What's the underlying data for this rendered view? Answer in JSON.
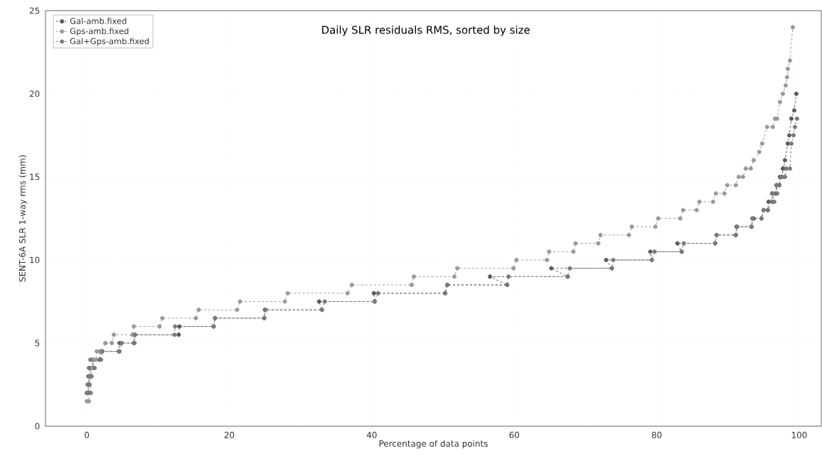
{
  "chart_data": {
    "type": "line",
    "title": "Daily SLR residuals RMS, sorted by size",
    "xlabel": "Percentage of data points",
    "ylabel": "SENT-6A SLR 1-way rms (mm)",
    "xlim": [
      -5.8,
      103.1
    ],
    "ylim": [
      0,
      25
    ],
    "xticks": [
      0,
      20,
      40,
      60,
      80,
      100
    ],
    "yticks": [
      0,
      5,
      10,
      15,
      20,
      25
    ],
    "grid": true,
    "legend": "top left",
    "marker": "circle",
    "line_style": "dashed",
    "series": [
      {
        "name": "Gal-amb.fixed",
        "color": "#5a5a5a",
        "x": [
          0,
          0.2,
          0.2,
          0.3,
          0.3,
          0.5,
          0.5,
          0.9,
          0.9,
          1.8,
          1.9,
          4.5,
          4.6,
          6.6,
          6.7,
          12.9,
          13.0,
          17.8,
          18.0,
          24.9,
          25.0,
          33.0,
          32.6,
          40.4,
          40.3,
          50.3,
          50.6,
          59.0,
          56.6,
          67.5,
          65.2,
          73.7,
          72.9,
          79.3,
          79.1,
          83.5,
          82.9,
          88.2,
          88.4,
          91.1,
          91.2,
          93.3,
          93.6,
          94.7,
          95.0,
          95.6,
          95.7,
          96.2,
          96.2,
          96.7,
          96.8,
          97.2,
          97.3,
          97.6,
          97.7,
          97.8,
          98.0,
          98.4,
          98.6,
          98.9,
          99.3,
          99.6
        ],
        "values": [
          2,
          2,
          2.5,
          2.5,
          3,
          3,
          3.5,
          3.5,
          4,
          4,
          4.5,
          4.5,
          5,
          5,
          5.5,
          5.5,
          6,
          6,
          6.5,
          6.5,
          7,
          7,
          7.5,
          7.5,
          8,
          8,
          8.5,
          8.5,
          9,
          9,
          9.5,
          9.5,
          10,
          10,
          10.5,
          10.5,
          11,
          11,
          11.5,
          11.5,
          12,
          12,
          12.5,
          12.5,
          13,
          13,
          13.5,
          13.5,
          14,
          14,
          14.5,
          14.5,
          15,
          15,
          15.5,
          15.5,
          16,
          17,
          17.5,
          18.5,
          19,
          20
        ]
      },
      {
        "name": "Gps-amb.fixed",
        "color": "#9a9a9a",
        "x": [
          0,
          0.3,
          0.3,
          0.6,
          0.4,
          0.7,
          0.6,
          0.9,
          0.8,
          1.3,
          1.4,
          2.0,
          2.6,
          3.5,
          3.8,
          6.4,
          6.6,
          10.2,
          10.6,
          15.3,
          15.7,
          21.1,
          21.5,
          27.8,
          28.2,
          36.6,
          37.2,
          45.6,
          45.9,
          51.6,
          52.0,
          59.9,
          60.3,
          64.6,
          64.9,
          68.3,
          68.6,
          71.8,
          72.1,
          76.1,
          76.5,
          79.8,
          80.2,
          83.3,
          83.7,
          85.6,
          86.0,
          87.9,
          88.3,
          89.5,
          89.9,
          91.1,
          91.5,
          92.1,
          92.5,
          93.2,
          93.6,
          94.4,
          94.8,
          95.5,
          96.3,
          96.6,
          96.9,
          97.3,
          97.7,
          98.1,
          98.3,
          98.4,
          98.7,
          99.1
        ],
        "values": [
          1.5,
          1.5,
          2,
          2,
          3,
          3,
          3.5,
          3.5,
          4,
          4,
          4.5,
          4.5,
          5,
          5,
          5.5,
          5.5,
          6,
          6,
          6.5,
          6.5,
          7,
          7,
          7.5,
          7.5,
          8,
          8,
          8.5,
          8.5,
          9,
          9,
          9.5,
          9.5,
          10,
          10,
          10.5,
          10.5,
          11,
          11,
          11.5,
          11.5,
          12,
          12,
          12.5,
          12.5,
          13,
          13,
          13.5,
          13.5,
          14,
          14,
          14.5,
          14.5,
          15,
          15,
          15.5,
          15.5,
          16,
          16.5,
          17,
          18,
          18,
          18.5,
          18.5,
          19.5,
          20,
          20.5,
          21,
          21.5,
          22,
          24
        ]
      },
      {
        "name": "Gal+Gps-amb.fixed",
        "color": "#7a7a7a",
        "x": [
          0,
          0.4,
          0.1,
          0.4,
          0.2,
          0.6,
          0.3,
          1.1,
          0.5,
          2.0,
          2.2,
          4.6,
          4.9,
          6.7,
          6.8,
          12.3,
          12.4,
          17.8,
          18.0,
          24.9,
          25.1,
          33.0,
          33.4,
          40.4,
          40.9,
          50.3,
          50.6,
          59.0,
          59.2,
          67.5,
          67.8,
          73.7,
          73.9,
          79.3,
          79.7,
          83.5,
          83.8,
          88.2,
          88.4,
          91.1,
          91.3,
          93.3,
          93.4,
          94.7,
          95.0,
          95.6,
          96.2,
          96.5,
          96.3,
          96.9,
          96.8,
          97.2,
          97.5,
          98.0,
          98.2,
          98.7,
          98.9,
          99.2,
          99.4,
          99.7
        ],
        "values": [
          2,
          2,
          2.5,
          2.5,
          3,
          3,
          3.5,
          3.5,
          4,
          4,
          4.5,
          4.5,
          5,
          5,
          5.5,
          5.5,
          6,
          6,
          6.5,
          6.5,
          7,
          7,
          7.5,
          7.5,
          8,
          8,
          8.5,
          8.5,
          9,
          9,
          9.5,
          9.5,
          10,
          10,
          10.5,
          10.5,
          11,
          11,
          11.5,
          11.5,
          12,
          12,
          12.5,
          12.5,
          13,
          13,
          13.5,
          13.5,
          14,
          14,
          14.5,
          14.5,
          15,
          15,
          15.5,
          15.5,
          17,
          17.5,
          18,
          18.5
        ]
      }
    ]
  }
}
